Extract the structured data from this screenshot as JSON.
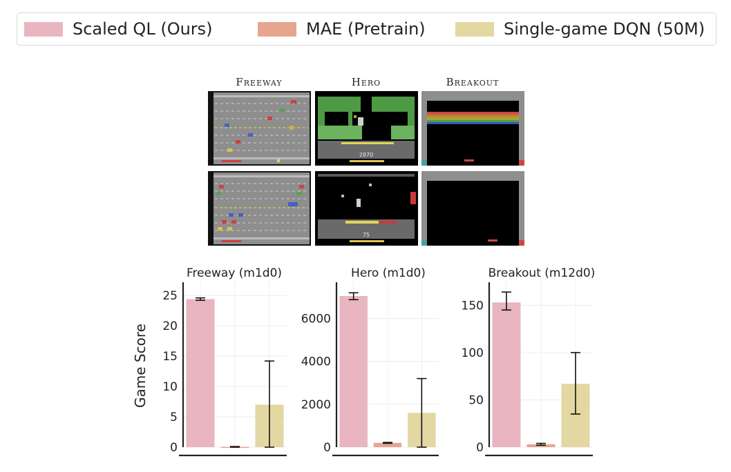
{
  "legend": {
    "items": [
      {
        "label": "Scaled QL (Ours)",
        "color": "#e8b5c0"
      },
      {
        "label": "MAE (Pretrain)",
        "color": "#e6a58e"
      },
      {
        "label": "Single-game DQN (50M)",
        "color": "#e3d7a2"
      }
    ]
  },
  "games": [
    {
      "title": "Freeway"
    },
    {
      "title": "Hero"
    },
    {
      "title": "Breakout"
    }
  ],
  "frame_texts": {
    "hero_score_top": "2970",
    "hero_score_bottom": "75"
  },
  "chart_data": [
    {
      "type": "bar",
      "title": "Freeway (m1d0)",
      "ylabel": "Game Score",
      "categories": [
        "Scaled QL (Ours)",
        "MAE (Pretrain)",
        "Single-game DQN (50M)"
      ],
      "values": [
        24.4,
        0.05,
        7.0
      ],
      "errors": [
        [
          24.2,
          24.6
        ],
        [
          0.0,
          0.1
        ],
        [
          0.0,
          14.2
        ]
      ],
      "yticks": [
        0,
        5,
        10,
        15,
        20,
        25
      ],
      "ylim": [
        0,
        26.5
      ]
    },
    {
      "type": "bar",
      "title": "Hero (m1d0)",
      "ylabel": "",
      "categories": [
        "Scaled QL (Ours)",
        "MAE (Pretrain)",
        "Single-game DQN (50M)"
      ],
      "values": [
        7050,
        200,
        1600
      ],
      "errors": [
        [
          6880,
          7200
        ],
        [
          180,
          220
        ],
        [
          0,
          3200
        ]
      ],
      "yticks": [
        0,
        2000,
        4000,
        6000
      ],
      "ylim": [
        0,
        7500
      ]
    },
    {
      "type": "bar",
      "title": "Breakout (m12d0)",
      "ylabel": "",
      "categories": [
        "Scaled QL (Ours)",
        "MAE (Pretrain)",
        "Single-game DQN (50M)"
      ],
      "values": [
        153,
        3,
        67
      ],
      "errors": [
        [
          145,
          164
        ],
        [
          2,
          4
        ],
        [
          35,
          100
        ]
      ],
      "yticks": [
        0,
        50,
        100,
        150
      ],
      "ylim": [
        0,
        170
      ]
    }
  ]
}
